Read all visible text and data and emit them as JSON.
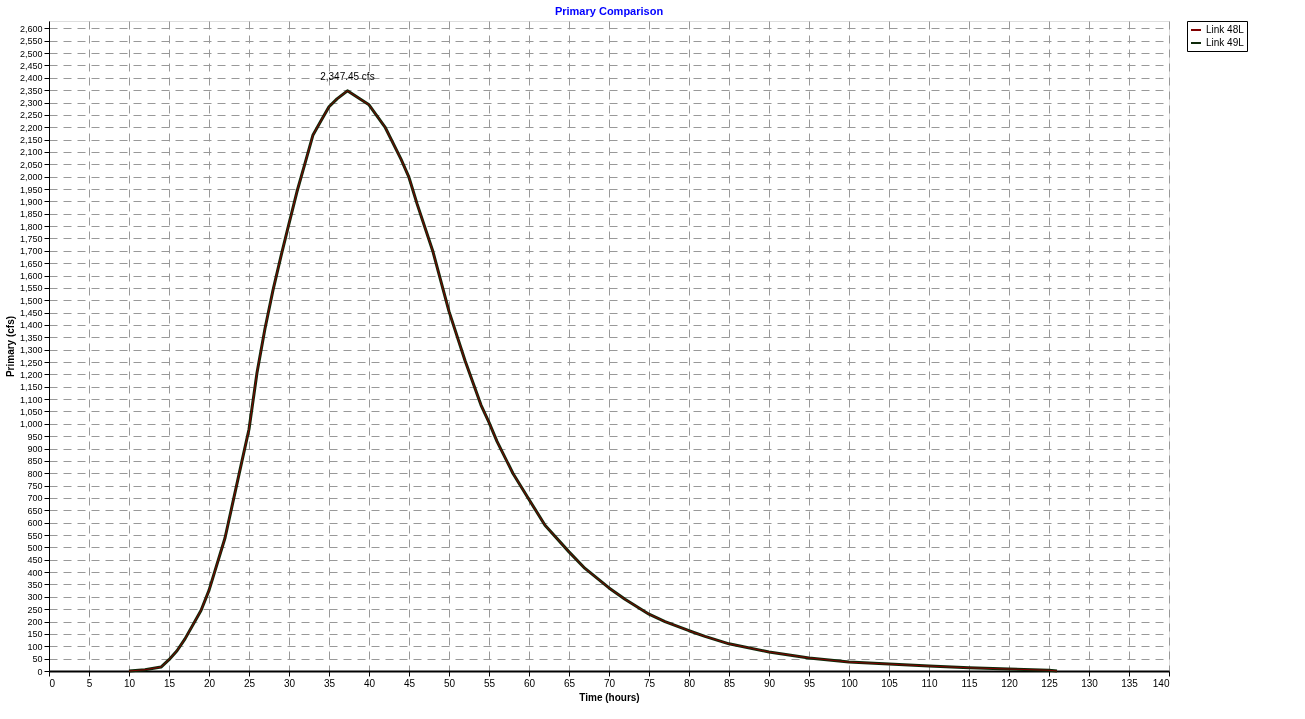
{
  "chart_data": {
    "type": "line",
    "title": "Primary Comparison",
    "xlabel": "Time  (hours)",
    "ylabel": "Primary (cfs)",
    "x": [
      10,
      12,
      14,
      15,
      16,
      17,
      19,
      20,
      22,
      24,
      25,
      26,
      27,
      28,
      29,
      30,
      31,
      32,
      33,
      34,
      35,
      36,
      37.3,
      40,
      42,
      44,
      45,
      46,
      48,
      50,
      52,
      54,
      55,
      56,
      58,
      60,
      62,
      65,
      67,
      70,
      72,
      75,
      77,
      80,
      82,
      85,
      90,
      95,
      100,
      105,
      110,
      115,
      120,
      125,
      126
    ],
    "series": [
      {
        "name": "Link 48L",
        "color": "#800000",
        "values": [
          0,
          5,
          16,
          46,
          82,
          130,
          245,
          326,
          538,
          832,
          978,
          1207,
          1386,
          1541,
          1679,
          1810,
          1940,
          2054,
          2169,
          2226,
          2283,
          2315,
          2347.45,
          2291,
          2201,
          2071,
          1997,
          1891,
          1696,
          1455,
          1256,
          1076,
          1006,
          929,
          799,
          694,
          590,
          482,
          415,
          336,
          290,
          230,
          200,
          163,
          140,
          110,
          77,
          53,
          36,
          28,
          20,
          13,
          8,
          3,
          0
        ]
      },
      {
        "name": "Link 49L",
        "color": "#0f2a0a",
        "values": [
          0,
          5,
          16,
          46,
          82,
          130,
          245,
          326,
          538,
          832,
          978,
          1207,
          1386,
          1541,
          1679,
          1810,
          1940,
          2054,
          2169,
          2226,
          2283,
          2315,
          2347.45,
          2291,
          2201,
          2071,
          1997,
          1891,
          1696,
          1455,
          1256,
          1076,
          1006,
          929,
          799,
          694,
          590,
          482,
          415,
          336,
          290,
          230,
          200,
          163,
          140,
          110,
          77,
          53,
          36,
          28,
          20,
          13,
          8,
          3,
          0
        ]
      }
    ],
    "annotations": [
      {
        "text": "2,347.45 cfs",
        "x": 37.3,
        "y": 2347.45
      }
    ],
    "xlim": [
      0,
      140
    ],
    "xticks": [
      0,
      5,
      10,
      15,
      20,
      25,
      30,
      35,
      40,
      45,
      50,
      55,
      60,
      65,
      70,
      75,
      80,
      85,
      90,
      95,
      100,
      105,
      110,
      115,
      120,
      125,
      130,
      135,
      140
    ],
    "ylim": [
      0,
      2630
    ],
    "yticks": [
      0,
      50,
      100,
      150,
      200,
      250,
      300,
      350,
      400,
      450,
      500,
      550,
      600,
      650,
      700,
      750,
      800,
      850,
      900,
      950,
      {
        "value": 1000,
        "label": "1,000"
      },
      {
        "value": 1050,
        "label": "1,050"
      },
      {
        "value": 1100,
        "label": "1,100"
      },
      {
        "value": 1150,
        "label": "1,150"
      },
      {
        "value": 1200,
        "label": "1,200"
      },
      {
        "value": 1250,
        "label": "1,250"
      },
      {
        "value": 1300,
        "label": "1,300"
      },
      {
        "value": 1350,
        "label": "1,350"
      },
      {
        "value": 1400,
        "label": "1,400"
      },
      {
        "value": 1450,
        "label": "1,450"
      },
      {
        "value": 1500,
        "label": "1,500"
      },
      {
        "value": 1550,
        "label": "1,550"
      },
      {
        "value": 1600,
        "label": "1,600"
      },
      {
        "value": 1650,
        "label": "1,650"
      },
      {
        "value": 1700,
        "label": "1,700"
      },
      {
        "value": 1750,
        "label": "1,750"
      },
      {
        "value": 1800,
        "label": "1,800"
      },
      {
        "value": 1850,
        "label": "1,850"
      },
      {
        "value": 1900,
        "label": "1,900"
      },
      {
        "value": 1950,
        "label": "1,950"
      },
      {
        "value": 2000,
        "label": "2,000"
      },
      {
        "value": 2050,
        "label": "2,050"
      },
      {
        "value": 2100,
        "label": "2,100"
      },
      {
        "value": 2150,
        "label": "2,150"
      },
      {
        "value": 2200,
        "label": "2,200"
      },
      {
        "value": 2250,
        "label": "2,250"
      },
      {
        "value": 2300,
        "label": "2,300"
      },
      {
        "value": 2350,
        "label": "2,350"
      },
      {
        "value": 2400,
        "label": "2,400"
      },
      {
        "value": 2450,
        "label": "2,450"
      },
      {
        "value": 2500,
        "label": "2,500"
      },
      {
        "value": 2550,
        "label": "2,550"
      },
      {
        "value": 2600,
        "label": "2,600"
      }
    ],
    "grid": true,
    "legend": "top right",
    "marker": "none",
    "line_style": "solid"
  }
}
